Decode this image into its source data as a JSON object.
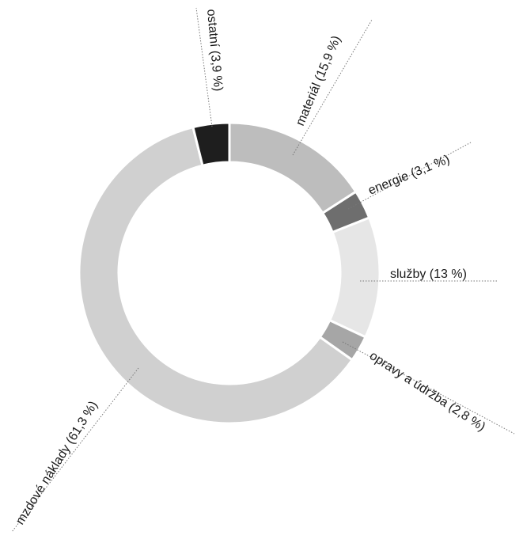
{
  "chart_data": {
    "type": "pie",
    "variant": "donut",
    "title": "",
    "categories": [
      "materiál",
      "energie",
      "služby",
      "opravy a údržba",
      "mzdové náklady",
      "ostatní"
    ],
    "values": [
      15.9,
      3.1,
      13,
      2.8,
      61.3,
      3.9
    ],
    "labels": [
      "materiál (15,9 %)",
      "energie (3,1 %)",
      "služby (13 %)",
      "opravy a údržba (2,8 %)",
      "mzdové náklady (61,3 %)",
      "ostatní (3,9 %)"
    ],
    "colors": [
      "#bdbdbd",
      "#6e6e6e",
      "#e6e6e6",
      "#a6a6a6",
      "#d0d0d0",
      "#1e1e1e"
    ],
    "legend": "none"
  }
}
